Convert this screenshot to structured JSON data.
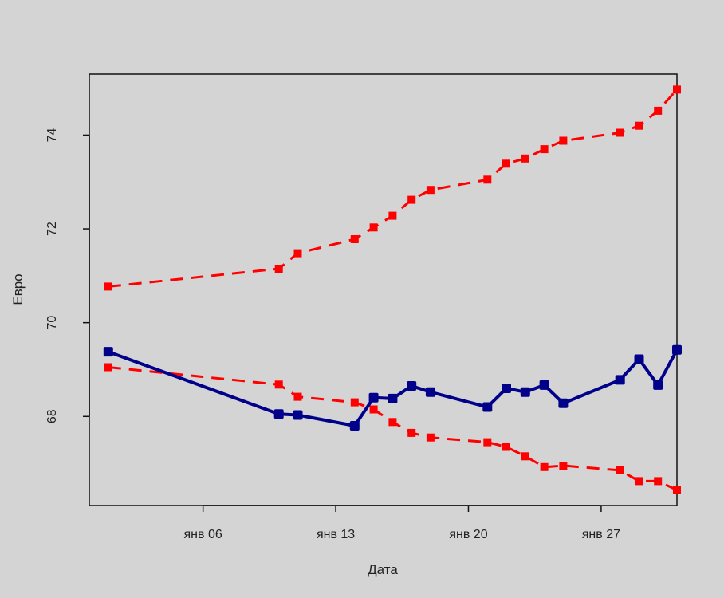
{
  "chart_data": {
    "type": "line",
    "xlabel": "Дата",
    "ylabel": "Евро",
    "x_range": [
      "2014-12-31",
      "2015-01-31"
    ],
    "ylim": [
      66.1,
      75.3
    ],
    "x_ticks": [
      {
        "date": "2015-01-06",
        "label": "янв 06"
      },
      {
        "date": "2015-01-13",
        "label": "янв 13"
      },
      {
        "date": "2015-01-20",
        "label": "янв 20"
      },
      {
        "date": "2015-01-27",
        "label": "янв 27"
      }
    ],
    "y_ticks": [
      68,
      70,
      72,
      74
    ],
    "grid": false,
    "series": [
      {
        "color": "#ff0000",
        "style": "dashed",
        "marker": "square",
        "x": [
          "2015-01-01",
          "2015-01-10",
          "2015-01-11",
          "2015-01-14",
          "2015-01-15",
          "2015-01-16",
          "2015-01-17",
          "2015-01-18",
          "2015-01-21",
          "2015-01-22",
          "2015-01-23",
          "2015-01-24",
          "2015-01-25",
          "2015-01-28",
          "2015-01-29",
          "2015-01-30",
          "2015-01-31"
        ],
        "y": [
          70.77,
          71.15,
          71.48,
          71.78,
          72.03,
          72.28,
          72.62,
          72.83,
          73.05,
          73.39,
          73.5,
          73.7,
          73.88,
          74.05,
          74.2,
          74.52,
          74.97
        ]
      },
      {
        "color": "#ff0000",
        "style": "dashed",
        "marker": "square",
        "x": [
          "2015-01-01",
          "2015-01-10",
          "2015-01-11",
          "2015-01-14",
          "2015-01-15",
          "2015-01-16",
          "2015-01-17",
          "2015-01-18",
          "2015-01-21",
          "2015-01-22",
          "2015-01-23",
          "2015-01-24",
          "2015-01-25",
          "2015-01-28",
          "2015-01-29",
          "2015-01-30",
          "2015-01-31"
        ],
        "y": [
          69.05,
          68.68,
          68.42,
          68.3,
          68.15,
          67.88,
          67.65,
          67.55,
          67.45,
          67.35,
          67.15,
          66.92,
          66.95,
          66.85,
          66.62,
          66.62,
          66.43
        ]
      },
      {
        "color": "#00008b",
        "style": "solid",
        "marker": "square",
        "x": [
          "2015-01-01",
          "2015-01-10",
          "2015-01-11",
          "2015-01-14",
          "2015-01-15",
          "2015-01-16",
          "2015-01-17",
          "2015-01-18",
          "2015-01-21",
          "2015-01-22",
          "2015-01-23",
          "2015-01-24",
          "2015-01-25",
          "2015-01-28",
          "2015-01-29",
          "2015-01-30",
          "2015-01-31"
        ],
        "y": [
          69.38,
          68.05,
          68.03,
          67.8,
          68.4,
          68.38,
          68.65,
          68.52,
          68.2,
          68.6,
          68.52,
          68.67,
          68.28,
          68.78,
          69.22,
          68.67,
          69.42
        ]
      }
    ]
  }
}
